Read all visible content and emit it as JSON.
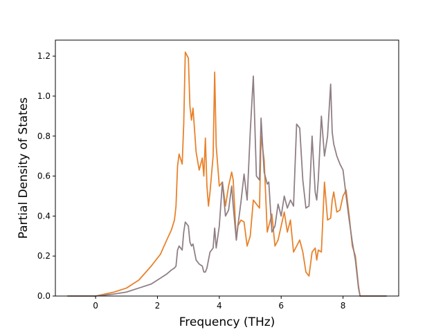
{
  "chart_data": {
    "type": "line",
    "title": "",
    "xlabel": "Frequency (THz)",
    "ylabel": "Partial Density of States",
    "xlim": [
      -1.3,
      9.8
    ],
    "ylim": [
      0.0,
      1.28
    ],
    "xticks": [
      0,
      2,
      4,
      6,
      8
    ],
    "xtick_labels": [
      "0",
      "2",
      "4",
      "6",
      "8"
    ],
    "yticks": [
      0.0,
      0.2,
      0.4,
      0.6,
      0.8,
      1.0,
      1.2
    ],
    "ytick_labels": [
      "0.0",
      "0.2",
      "0.4",
      "0.6",
      "0.8",
      "1.0",
      "1.2"
    ],
    "grid": false,
    "legend": "none",
    "series": [
      {
        "color": "#e8822a",
        "x": [
          -0.9,
          0.0,
          0.3,
          0.6,
          1.0,
          1.4,
          1.8,
          2.1,
          2.3,
          2.45,
          2.55,
          2.6,
          2.65,
          2.7,
          2.8,
          2.85,
          2.9,
          3.0,
          3.05,
          3.1,
          3.15,
          3.25,
          3.35,
          3.45,
          3.5,
          3.55,
          3.6,
          3.65,
          3.7,
          3.8,
          3.85,
          3.9,
          4.0,
          4.1,
          4.2,
          4.3,
          4.4,
          4.45,
          4.55,
          4.6,
          4.7,
          4.8,
          4.9,
          5.0,
          5.1,
          5.2,
          5.3,
          5.35,
          5.45,
          5.55,
          5.6,
          5.7,
          5.8,
          5.9,
          6.0,
          6.1,
          6.2,
          6.3,
          6.4,
          6.5,
          6.6,
          6.7,
          6.8,
          6.9,
          7.0,
          7.1,
          7.15,
          7.2,
          7.3,
          7.4,
          7.5,
          7.6,
          7.65,
          7.7,
          7.8,
          7.9,
          8.0,
          8.1,
          8.2,
          8.3,
          8.4,
          8.5,
          8.55,
          9.4
        ],
        "y": [
          0.0,
          0.0,
          0.01,
          0.02,
          0.04,
          0.08,
          0.15,
          0.21,
          0.28,
          0.33,
          0.38,
          0.45,
          0.65,
          0.71,
          0.66,
          0.86,
          1.22,
          1.19,
          0.95,
          0.88,
          0.94,
          0.72,
          0.63,
          0.69,
          0.6,
          0.79,
          0.55,
          0.45,
          0.52,
          0.7,
          1.12,
          0.75,
          0.55,
          0.57,
          0.45,
          0.55,
          0.62,
          0.58,
          0.28,
          0.35,
          0.38,
          0.37,
          0.25,
          0.3,
          0.48,
          0.46,
          0.44,
          0.8,
          0.68,
          0.32,
          0.35,
          0.41,
          0.25,
          0.28,
          0.35,
          0.42,
          0.32,
          0.38,
          0.22,
          0.25,
          0.28,
          0.22,
          0.12,
          0.1,
          0.22,
          0.24,
          0.18,
          0.23,
          0.22,
          0.57,
          0.38,
          0.39,
          0.48,
          0.52,
          0.42,
          0.43,
          0.5,
          0.53,
          0.4,
          0.25,
          0.2,
          0.05,
          0.0,
          0.0
        ]
      },
      {
        "color": "#8f7f85",
        "x": [
          -0.9,
          0.0,
          0.3,
          0.6,
          1.0,
          1.4,
          1.8,
          2.1,
          2.3,
          2.45,
          2.55,
          2.6,
          2.65,
          2.7,
          2.8,
          2.85,
          2.9,
          3.0,
          3.05,
          3.1,
          3.15,
          3.25,
          3.35,
          3.45,
          3.5,
          3.55,
          3.6,
          3.65,
          3.7,
          3.8,
          3.85,
          3.9,
          4.0,
          4.1,
          4.2,
          4.3,
          4.4,
          4.45,
          4.55,
          4.6,
          4.7,
          4.8,
          4.9,
          5.0,
          5.1,
          5.2,
          5.3,
          5.35,
          5.45,
          5.55,
          5.6,
          5.7,
          5.8,
          5.9,
          6.0,
          6.1,
          6.2,
          6.3,
          6.4,
          6.5,
          6.6,
          6.7,
          6.8,
          6.9,
          7.0,
          7.1,
          7.15,
          7.2,
          7.3,
          7.4,
          7.5,
          7.6,
          7.65,
          7.7,
          7.8,
          7.9,
          8.0,
          8.1,
          8.2,
          8.3,
          8.4,
          8.5,
          8.55,
          9.4
        ],
        "y": [
          0.0,
          0.0,
          0.005,
          0.01,
          0.02,
          0.04,
          0.06,
          0.09,
          0.11,
          0.13,
          0.14,
          0.15,
          0.23,
          0.25,
          0.23,
          0.32,
          0.37,
          0.35,
          0.27,
          0.25,
          0.26,
          0.18,
          0.16,
          0.15,
          0.12,
          0.12,
          0.14,
          0.18,
          0.22,
          0.24,
          0.34,
          0.24,
          0.35,
          0.57,
          0.4,
          0.43,
          0.55,
          0.45,
          0.28,
          0.35,
          0.47,
          0.61,
          0.48,
          0.82,
          1.1,
          0.6,
          0.58,
          0.89,
          0.62,
          0.56,
          0.57,
          0.32,
          0.35,
          0.46,
          0.4,
          0.5,
          0.44,
          0.48,
          0.45,
          0.86,
          0.84,
          0.58,
          0.44,
          0.45,
          0.8,
          0.52,
          0.48,
          0.58,
          0.9,
          0.7,
          0.8,
          1.06,
          0.82,
          0.76,
          0.7,
          0.66,
          0.63,
          0.5,
          0.38,
          0.27,
          0.18,
          0.04,
          0.0,
          0.0
        ]
      }
    ]
  }
}
